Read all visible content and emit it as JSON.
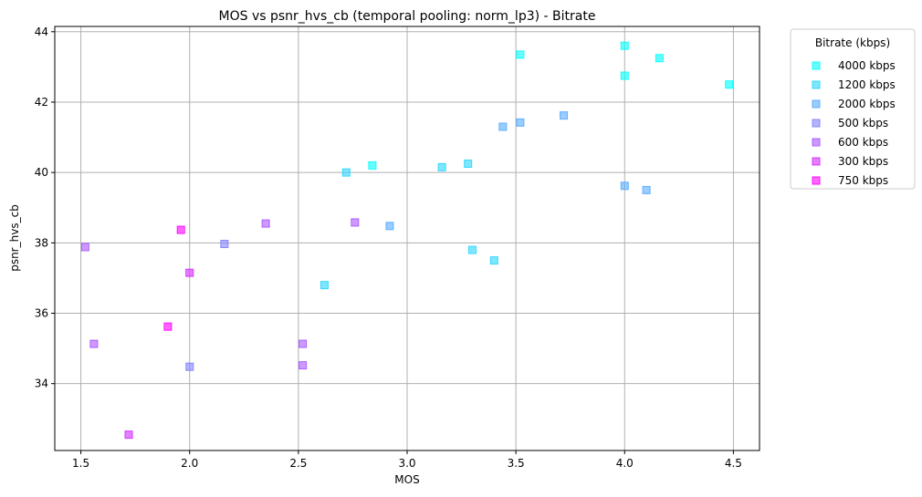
{
  "chart_data": {
    "type": "scatter",
    "title": "MOS vs psnr_hvs_cb (temporal pooling: norm_lp3) - Bitrate",
    "xlabel": "MOS",
    "ylabel": "psnr_hvs_cb",
    "xlim": [
      1.38,
      4.62
    ],
    "ylim": [
      32.1,
      44.15
    ],
    "xticks": [
      "1.5",
      "2.0",
      "2.5",
      "3.0",
      "3.5",
      "4.0",
      "4.5"
    ],
    "xtick_values": [
      1.5,
      2.0,
      2.5,
      3.0,
      3.5,
      4.0,
      4.5
    ],
    "yticks": [
      "34",
      "36",
      "38",
      "40",
      "42",
      "44"
    ],
    "ytick_values": [
      34,
      36,
      38,
      40,
      42,
      44
    ],
    "grid": true,
    "legend": {
      "title": "Bitrate (kbps)",
      "placement": "outside-right"
    },
    "series": [
      {
        "name": "4000 kbps",
        "color": "#00ffff",
        "points": [
          [
            3.52,
            43.35
          ],
          [
            4.0,
            43.6
          ],
          [
            4.16,
            43.25
          ],
          [
            4.0,
            42.75
          ],
          [
            4.48,
            42.5
          ],
          [
            2.84,
            40.2
          ]
        ]
      },
      {
        "name": "1200 kbps",
        "color": "#2ad5ff",
        "points": [
          [
            2.72,
            40.0
          ],
          [
            3.16,
            40.15
          ],
          [
            3.28,
            40.25
          ],
          [
            3.3,
            37.8
          ],
          [
            3.4,
            37.5
          ],
          [
            2.62,
            36.8
          ]
        ]
      },
      {
        "name": "2000 kbps",
        "color": "#55aaff",
        "points": [
          [
            3.44,
            41.3
          ],
          [
            3.52,
            41.42
          ],
          [
            3.72,
            41.62
          ],
          [
            4.0,
            39.62
          ],
          [
            4.1,
            39.5
          ],
          [
            2.92,
            38.48
          ]
        ]
      },
      {
        "name": "500 kbps",
        "color": "#8080ff",
        "points": [
          [
            2.16,
            37.97
          ],
          [
            2.0,
            34.48
          ]
        ]
      },
      {
        "name": "600 kbps",
        "color": "#aa55ff",
        "points": [
          [
            1.52,
            37.88
          ],
          [
            2.35,
            38.55
          ],
          [
            2.76,
            38.58
          ],
          [
            1.56,
            35.13
          ],
          [
            2.52,
            35.13
          ],
          [
            2.52,
            34.52
          ]
        ]
      },
      {
        "name": "300 kbps",
        "color": "#d42aff",
        "points": [
          [
            2.0,
            37.15
          ],
          [
            1.72,
            32.55
          ]
        ]
      },
      {
        "name": "750 kbps",
        "color": "#ff00ff",
        "points": [
          [
            1.96,
            38.37
          ],
          [
            1.9,
            35.62
          ]
        ]
      }
    ]
  }
}
